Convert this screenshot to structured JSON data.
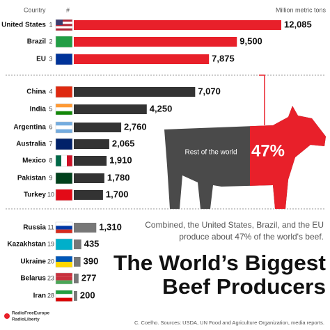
{
  "chart_data": {
    "type": "bar",
    "header_country": "Country",
    "header_rank": "#",
    "unit": "Million metric tons",
    "categories": [
      "United States",
      "Brazil",
      "EU",
      "China",
      "India",
      "Argentina",
      "Australia",
      "Mexico",
      "Pakistan",
      "Turkey",
      "Russia",
      "Kazakhstan",
      "Ukraine",
      "Belarus",
      "Iran"
    ],
    "ranks": [
      1,
      2,
      3,
      4,
      5,
      6,
      7,
      8,
      9,
      10,
      11,
      19,
      20,
      23,
      28
    ],
    "values": [
      12085,
      9500,
      7875,
      7070,
      4250,
      2760,
      2065,
      1910,
      1780,
      1700,
      1310,
      435,
      390,
      277,
      200
    ],
    "value_labels": [
      "12,085",
      "9,500",
      "7,875",
      "7,070",
      "4,250",
      "2,760",
      "2,065",
      "1,910",
      "1,780",
      "1,700",
      "1,310",
      "435",
      "390",
      "277",
      "200"
    ],
    "colors": [
      "#e8202a",
      "#e8202a",
      "#e8202a",
      "#333333",
      "#333333",
      "#333333",
      "#333333",
      "#333333",
      "#333333",
      "#333333",
      "#777777",
      "#777777",
      "#777777",
      "#777777",
      "#777777"
    ],
    "cow": {
      "rest_label": "Rest of the world",
      "share": 47,
      "share_label": "47%",
      "gray": "#4a4a4a",
      "red": "#e8202a"
    },
    "subtitle_lines": [
      "Combined, the United States, Brazil, and the EU",
      "produce about 47% of the world's beef."
    ],
    "title_lines": [
      "The World’s Biggest",
      "Beef Producers"
    ],
    "source": "C. Coelho. Sources: USDA, UN Food and Agriculture Organization, media reports.",
    "logo_lines": [
      "RadioFreeEurope",
      "RadioLiberty"
    ]
  }
}
